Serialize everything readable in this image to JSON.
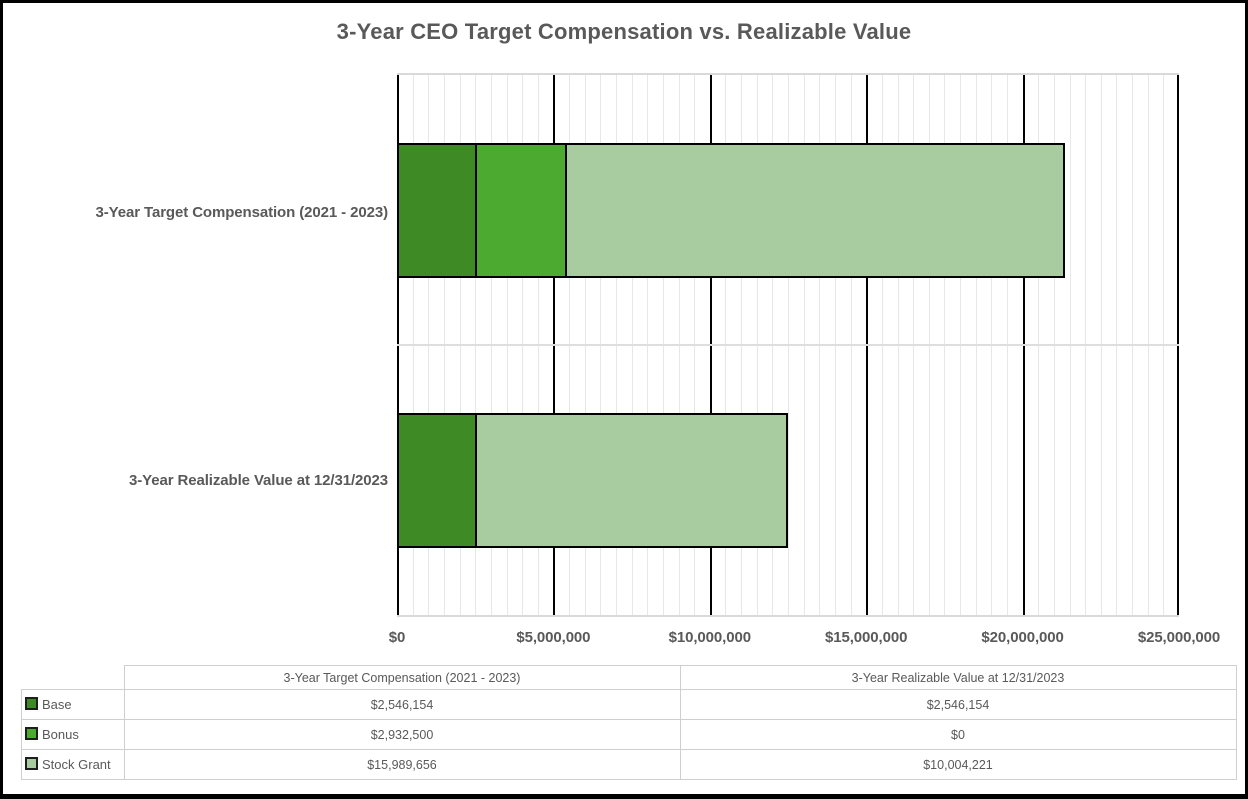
{
  "chart_data": {
    "type": "bar",
    "orientation": "horizontal",
    "stacked": true,
    "title": "3-Year CEO Target Compensation vs. Realizable Value",
    "categories": [
      "3-Year Target Compensation (2021 - 2023)",
      "3-Year Realizable Value at 12/31/2023"
    ],
    "series": [
      {
        "name": "Base",
        "color": "#3E8A24",
        "values": [
          2546154,
          2546154
        ],
        "labels": [
          "$2,546,154",
          "$2,546,154"
        ]
      },
      {
        "name": "Bonus",
        "color": "#4CAA30",
        "values": [
          2932500,
          0
        ],
        "labels": [
          "$2,932,500",
          "$0"
        ]
      },
      {
        "name": "Stock Grant",
        "color": "#A9CBA0",
        "values": [
          15989656,
          10004221
        ],
        "labels": [
          "$15,989,656",
          "$10,004,221"
        ]
      }
    ],
    "x_axis": {
      "min": 0,
      "max": 25000000,
      "major_unit": 5000000,
      "minor_unit": 500000,
      "tick_labels": [
        "$0",
        "$5,000,000",
        "$10,000,000",
        "$15,000,000",
        "$20,000,000",
        "$25,000,000"
      ]
    },
    "grid": {
      "major_vertical": true,
      "minor_vertical": true,
      "category_divider": true
    },
    "legend_position": "table-left"
  },
  "styles": {
    "text_color": "#595959",
    "major_gridline_color": "#000000",
    "minor_gridline_color": "#E7E7E7",
    "category_divider_color": "#DEDEDE",
    "plot_border_color": "#D9D9D9",
    "table_border_color": "#CFCFCF",
    "frame_border_color": "#000000",
    "background_color": "#FFFFFF"
  }
}
